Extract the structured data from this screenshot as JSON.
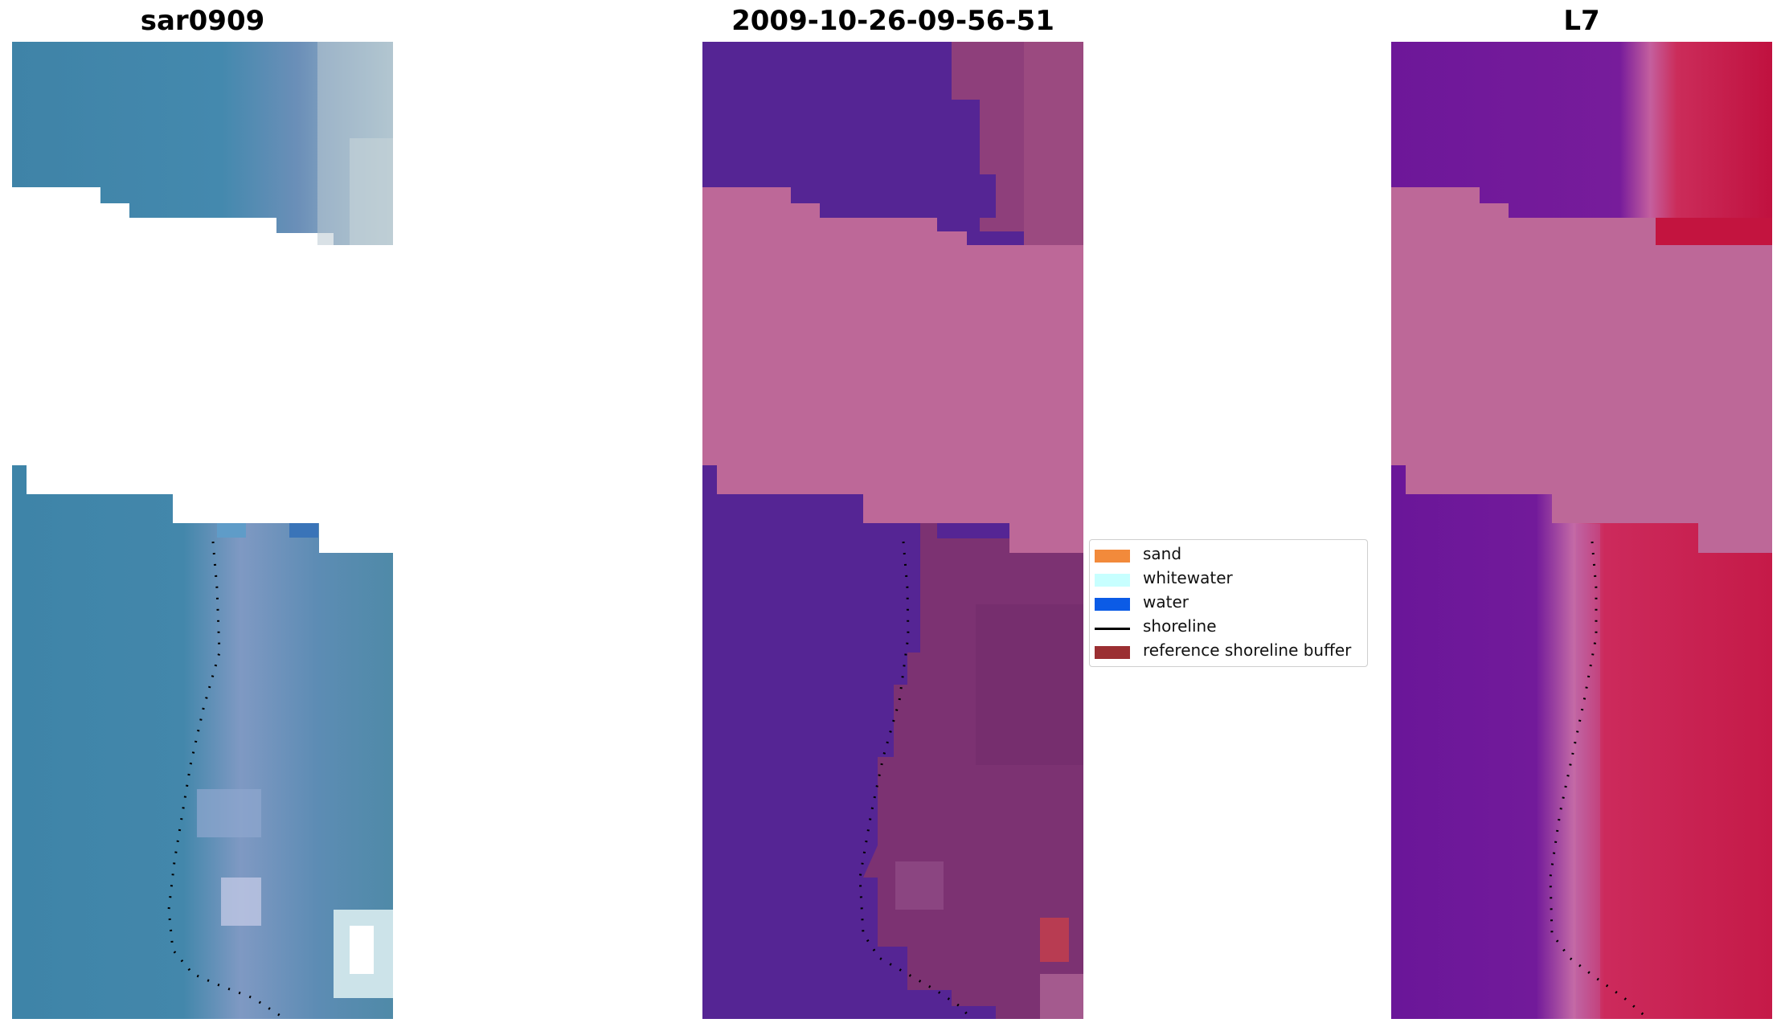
{
  "titles": [
    "sar0909",
    "2009-10-26-09-56-51",
    "L7"
  ],
  "legend": [
    {
      "label": "sand",
      "color": "#f28a3b",
      "type": "patch"
    },
    {
      "label": "whitewater",
      "color": "#c7ffff",
      "type": "patch"
    },
    {
      "label": "water",
      "color": "#0b5be6",
      "type": "patch"
    },
    {
      "label": "shoreline",
      "color": "#000000",
      "type": "line"
    },
    {
      "label": "reference shoreline buffer",
      "color": "#9b2f32",
      "type": "patch"
    }
  ],
  "colors": {
    "rgb_water": "#4486a8",
    "rgb_foam": "#b7c6d3",
    "class_water": "#552594",
    "cloud_mask": "#bd6898",
    "class_sand": "#7c3272",
    "class_whitewater": "#b83c52",
    "l7_water": "#6c1499",
    "l7_sand": "#c21a46"
  }
}
